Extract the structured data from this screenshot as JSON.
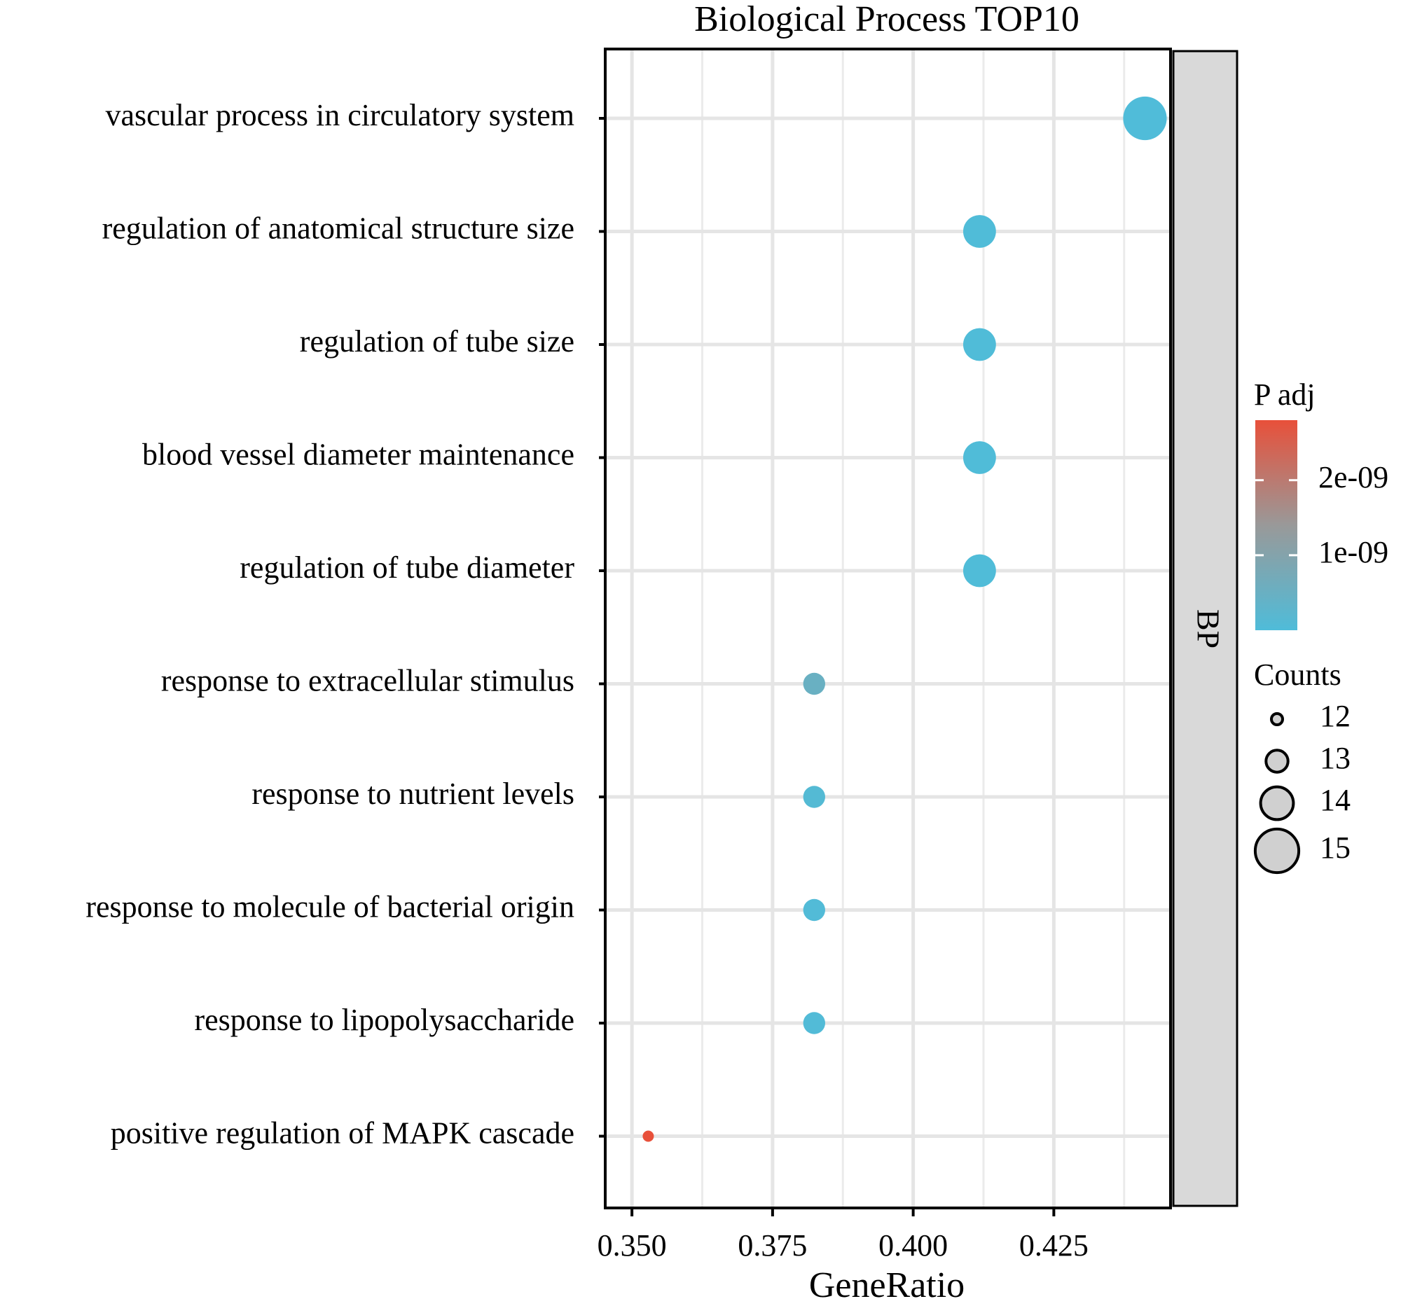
{
  "chart_data": {
    "type": "scatter",
    "title": "Biological Process TOP10",
    "xlabel": "GeneRatio",
    "ylabel": "",
    "xlim": [
      0.3455,
      0.4455
    ],
    "xticks": [
      0.35,
      0.375,
      0.4,
      0.425
    ],
    "xtick_labels": [
      "0.350",
      "0.375",
      "0.400",
      "0.425"
    ],
    "grid": true,
    "facet_label": "BP",
    "categories": [
      "vascular process in circulatory system",
      "regulation of anatomical structure size",
      "regulation of tube size",
      "blood vessel diameter maintenance",
      "regulation of tube diameter",
      "response to extracellular stimulus",
      "response to nutrient levels",
      "response to molecule of bacterial origin",
      "response to lipopolysaccharide",
      "positive regulation of MAPK cascade"
    ],
    "points": [
      {
        "term": "vascular process in circulatory system",
        "gene_ratio": 0.4412,
        "count": 15,
        "p_adj": 1e-11
      },
      {
        "term": "regulation of anatomical structure size",
        "gene_ratio": 0.4118,
        "count": 14,
        "p_adj": 2e-11
      },
      {
        "term": "regulation of tube size",
        "gene_ratio": 0.4118,
        "count": 14,
        "p_adj": 2e-11
      },
      {
        "term": "blood vessel diameter maintenance",
        "gene_ratio": 0.4118,
        "count": 14,
        "p_adj": 2e-11
      },
      {
        "term": "regulation of tube diameter",
        "gene_ratio": 0.4118,
        "count": 14,
        "p_adj": 2e-11
      },
      {
        "term": "response to extracellular stimulus",
        "gene_ratio": 0.3824,
        "count": 13,
        "p_adj": 5e-10
      },
      {
        "term": "response to nutrient levels",
        "gene_ratio": 0.3824,
        "count": 13,
        "p_adj": 1e-10
      },
      {
        "term": "response to molecule of bacterial origin",
        "gene_ratio": 0.3824,
        "count": 13,
        "p_adj": 5e-11
      },
      {
        "term": "response to lipopolysaccharide",
        "gene_ratio": 0.3824,
        "count": 13,
        "p_adj": 5e-11
      },
      {
        "term": "positive regulation of MAPK cascade",
        "gene_ratio": 0.3529,
        "count": 12,
        "p_adj": 2.8e-09
      }
    ],
    "color_legend": {
      "title": "P adj",
      "range": [
        0,
        2.8e-09
      ],
      "low_color": "#4fbcd9",
      "mid_color": "#999999",
      "high_color": "#e8503a",
      "ticks": [
        1e-09,
        2e-09
      ],
      "tick_labels": [
        "1e-09",
        "2e-09"
      ]
    },
    "size_legend": {
      "title": "Counts",
      "values": [
        12,
        13,
        14,
        15
      ],
      "labels": [
        "12",
        "13",
        "14",
        "15"
      ]
    }
  }
}
